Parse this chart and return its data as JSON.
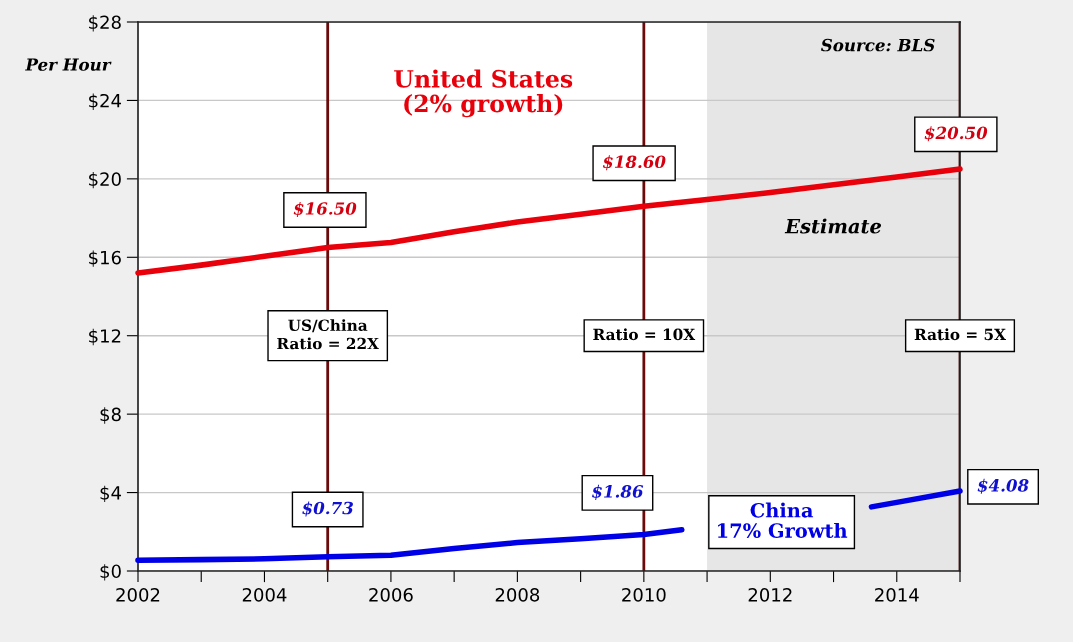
{
  "chart_data": {
    "type": "line",
    "ylabel": "Per Hour",
    "x": [
      2002,
      2003,
      2004,
      2005,
      2006,
      2007,
      2008,
      2009,
      2010,
      2011,
      2012,
      2013,
      2014,
      2015
    ],
    "series": [
      {
        "name": "United States\n(2% growth)",
        "color": "#e8000b",
        "values": [
          15.2,
          15.6,
          16.05,
          16.5,
          16.75,
          17.3,
          17.8,
          18.2,
          18.6,
          18.95,
          19.3,
          19.7,
          20.1,
          20.5
        ]
      },
      {
        "name": "China\n17% Growth",
        "color": "#0000e6",
        "x": [
          2002,
          2003,
          2004,
          2005,
          2006,
          2007,
          2008,
          2009,
          2010,
          2010.6,
          2012,
          2013.6,
          2014,
          2015
        ],
        "values": [
          0.55,
          0.58,
          0.62,
          0.73,
          0.8,
          1.15,
          1.45,
          1.65,
          1.86,
          2.1,
          null,
          3.27,
          3.5,
          4.08
        ]
      }
    ],
    "xlim": [
      2002,
      2015
    ],
    "xticks": [
      2002,
      {
        "value": 2003,
        "label": null
      },
      2004,
      {
        "value": 2005,
        "label": null
      },
      2006,
      {
        "value": 2007,
        "label": null
      },
      2008,
      {
        "value": 2009,
        "label": null
      },
      2010,
      {
        "value": 2011,
        "label": null
      },
      2012,
      {
        "value": 2013,
        "label": null
      },
      2014,
      {
        "value": 2015,
        "label": null
      }
    ],
    "ylim": [
      0,
      28
    ],
    "yticks": [
      {
        "value": 0,
        "label": "$0"
      },
      {
        "value": 4,
        "label": "$4"
      },
      {
        "value": 8,
        "label": "$8"
      },
      {
        "value": 12,
        "label": "$12"
      },
      {
        "value": 16,
        "label": "$16"
      },
      {
        "value": 20,
        "label": "$20"
      },
      {
        "value": 24,
        "label": "$24"
      },
      {
        "value": 28,
        "label": "$28"
      }
    ],
    "grid": "y",
    "ref_lines": [
      {
        "axis": "x",
        "value": 2005,
        "color": "#6b0a0a"
      },
      {
        "axis": "x",
        "value": 2010,
        "color": "#6b0a0a"
      },
      {
        "axis": "x",
        "value": 2015,
        "color": "#3a0505"
      }
    ],
    "bands": [
      {
        "axis": "x",
        "from": 2011,
        "to": 2015,
        "label": "Estimate",
        "color": "#e6e6e6"
      }
    ],
    "annotations": [
      {
        "text": "$16.50",
        "x": 2005,
        "y": 16.5
      },
      {
        "text": "$18.60",
        "x": 2010,
        "y": 18.6
      },
      {
        "text": "$20.50",
        "x": 2015,
        "y": 20.5
      },
      {
        "text": "$0.73",
        "x": 2005,
        "y": 0.73
      },
      {
        "text": "$1.86",
        "x": 2010,
        "y": 1.86
      },
      {
        "text": "$4.08",
        "x": 2015,
        "y": 4.08
      },
      {
        "text": "US/China\nRatio = 22X",
        "x": 2005,
        "y": 12
      },
      {
        "text": "Ratio = 10X",
        "x": 2010,
        "y": 12
      },
      {
        "text": "Ratio = 5X",
        "x": 2015,
        "y": 12
      },
      "Source: BLS"
    ]
  }
}
